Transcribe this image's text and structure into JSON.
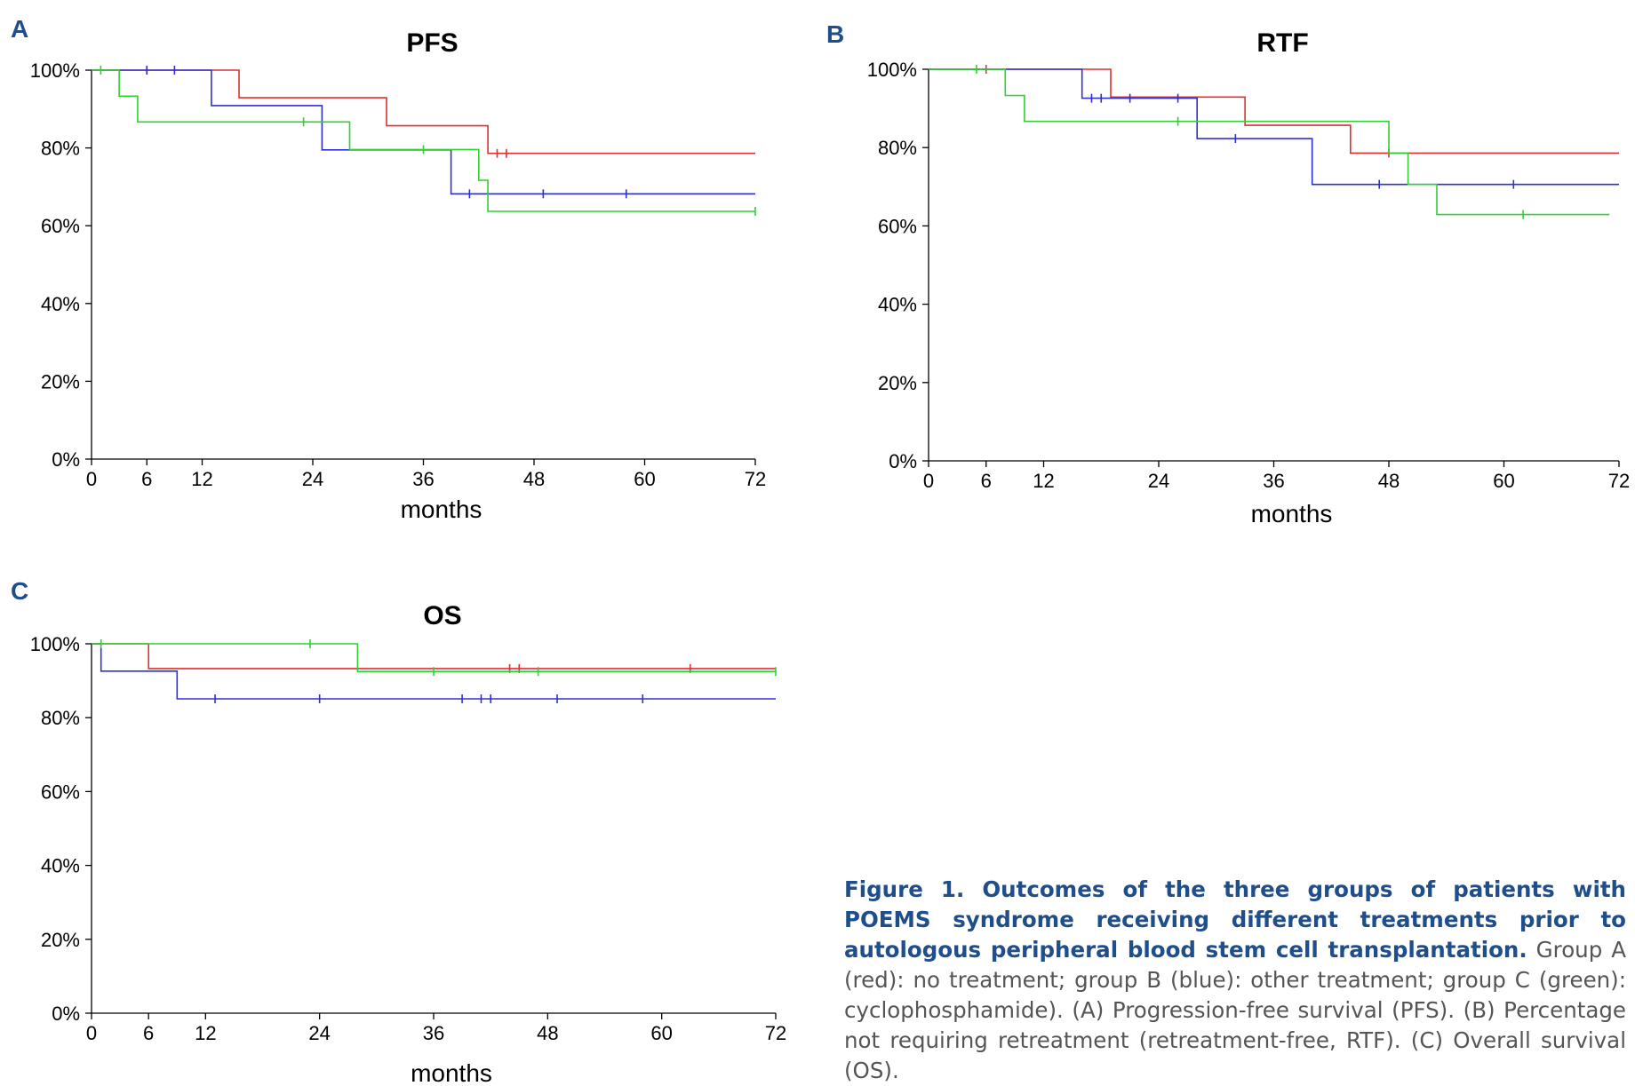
{
  "colors": {
    "group_a": "#e03030",
    "group_b": "#3030d0",
    "group_c": "#30d030",
    "panel_letter": "#1f4e8c",
    "caption_title": "#1f4e8c"
  },
  "caption": {
    "title": "Figure 1. Outcomes of the three groups of patients with POEMS syndrome receiving different treatments prior to autologous peripheral blood stem cell transplantation.",
    "body": "Group A (red): no treatment; group B (blue): other treatment; group C (green): cyclophosphamide). (A) Progression-free survival (PFS). (B) Percentage not requiring retreatment (retreatment-free, RTF). (C) Overall survival (OS)."
  },
  "chart_data": [
    {
      "panel": "A",
      "type": "line",
      "step": true,
      "title": "PFS",
      "xlabel": "months",
      "ylabel": "",
      "xlim": [
        0,
        72
      ],
      "ylim": [
        0,
        100
      ],
      "xticks": [
        0,
        6,
        12,
        24,
        36,
        48,
        60,
        72
      ],
      "yticks": [
        0,
        20,
        40,
        60,
        80,
        100
      ],
      "ytick_labels": [
        "0%",
        "20%",
        "40%",
        "60%",
        "80%",
        "100%"
      ],
      "series": [
        {
          "color": "#e03030",
          "points": [
            [
              0,
              100
            ],
            [
              16,
              100
            ],
            [
              16,
              92.9
            ],
            [
              32,
              92.9
            ],
            [
              32,
              85.7
            ],
            [
              43,
              85.7
            ],
            [
              43,
              78.6
            ],
            [
              72,
              78.6
            ]
          ],
          "censored": [
            [
              6,
              100
            ],
            [
              44,
              78.6
            ],
            [
              45,
              78.6
            ]
          ]
        },
        {
          "color": "#3030d0",
          "points": [
            [
              0,
              100
            ],
            [
              13,
              100
            ],
            [
              13,
              90.9
            ],
            [
              25,
              90.9
            ],
            [
              25,
              79.5
            ],
            [
              39,
              79.5
            ],
            [
              39,
              68.2
            ],
            [
              72,
              68.2
            ]
          ],
          "censored": [
            [
              6,
              100
            ],
            [
              9,
              100
            ],
            [
              41,
              68.2
            ],
            [
              49,
              68.2
            ],
            [
              58,
              68.2
            ]
          ]
        },
        {
          "color": "#30d030",
          "points": [
            [
              0,
              100
            ],
            [
              3,
              100
            ],
            [
              3,
              93.3
            ],
            [
              5,
              93.3
            ],
            [
              5,
              86.7
            ],
            [
              28,
              86.7
            ],
            [
              28,
              79.6
            ],
            [
              42,
              79.6
            ],
            [
              42,
              71.7
            ],
            [
              43,
              71.7
            ],
            [
              43,
              63.7
            ],
            [
              72,
              63.7
            ]
          ],
          "censored": [
            [
              1,
              100
            ],
            [
              23,
              86.7
            ],
            [
              36,
              79.6
            ],
            [
              72,
              63.7
            ]
          ]
        }
      ]
    },
    {
      "panel": "B",
      "type": "line",
      "step": true,
      "title": "RTF",
      "xlabel": "months",
      "ylabel": "",
      "xlim": [
        0,
        72
      ],
      "ylim": [
        0,
        100
      ],
      "xticks": [
        0,
        6,
        12,
        24,
        36,
        48,
        60,
        72
      ],
      "yticks": [
        0,
        20,
        40,
        60,
        80,
        100
      ],
      "ytick_labels": [
        "0%",
        "20%",
        "40%",
        "60%",
        "80%",
        "100%"
      ],
      "series": [
        {
          "color": "#e03030",
          "points": [
            [
              0,
              100
            ],
            [
              19,
              100
            ],
            [
              19,
              92.9
            ],
            [
              33,
              92.9
            ],
            [
              33,
              85.7
            ],
            [
              44,
              85.7
            ],
            [
              44,
              78.6
            ],
            [
              72,
              78.6
            ]
          ],
          "censored": [
            [
              6,
              100
            ],
            [
              48,
              78.6
            ]
          ]
        },
        {
          "color": "#3030d0",
          "points": [
            [
              0,
              100
            ],
            [
              16,
              100
            ],
            [
              16,
              92.6
            ],
            [
              28,
              92.6
            ],
            [
              28,
              82.3
            ],
            [
              40,
              82.3
            ],
            [
              40,
              70.6
            ],
            [
              72,
              70.6
            ]
          ],
          "censored": [
            [
              17,
              92.6
            ],
            [
              18,
              92.6
            ],
            [
              21,
              92.6
            ],
            [
              26,
              92.6
            ],
            [
              32,
              82.3
            ],
            [
              47,
              70.6
            ],
            [
              61,
              70.6
            ]
          ]
        },
        {
          "color": "#30d030",
          "points": [
            [
              0,
              100
            ],
            [
              8,
              100
            ],
            [
              8,
              93.3
            ],
            [
              10,
              93.3
            ],
            [
              10,
              86.7
            ],
            [
              48,
              86.7
            ],
            [
              48,
              78.6
            ],
            [
              50,
              78.6
            ],
            [
              50,
              70.6
            ],
            [
              53,
              70.6
            ],
            [
              53,
              62.9
            ],
            [
              71,
              62.9
            ]
          ],
          "censored": [
            [
              5,
              100
            ],
            [
              26,
              86.7
            ],
            [
              62,
              62.9
            ]
          ]
        }
      ]
    },
    {
      "panel": "C",
      "type": "line",
      "step": true,
      "title": "OS",
      "xlabel": "months",
      "ylabel": "",
      "xlim": [
        0,
        72
      ],
      "ylim": [
        0,
        100
      ],
      "xticks": [
        0,
        6,
        12,
        24,
        36,
        48,
        60,
        72
      ],
      "yticks": [
        0,
        20,
        40,
        60,
        80,
        100
      ],
      "ytick_labels": [
        "0%",
        "20%",
        "40%",
        "60%",
        "80%",
        "100%"
      ],
      "series": [
        {
          "color": "#e03030",
          "points": [
            [
              0,
              100
            ],
            [
              6,
              100
            ],
            [
              6,
              93.3
            ],
            [
              72,
              93.3
            ]
          ],
          "censored": [
            [
              44,
              93.3
            ],
            [
              45,
              93.3
            ],
            [
              63,
              93.3
            ]
          ]
        },
        {
          "color": "#3030d0",
          "points": [
            [
              0,
              100
            ],
            [
              1,
              100
            ],
            [
              1,
              92.6
            ],
            [
              9,
              92.6
            ],
            [
              9,
              85.1
            ],
            [
              72,
              85.1
            ]
          ],
          "censored": [
            [
              13,
              85.1
            ],
            [
              24,
              85.1
            ],
            [
              39,
              85.1
            ],
            [
              41,
              85.1
            ],
            [
              42,
              85.1
            ],
            [
              49,
              85.1
            ],
            [
              58,
              85.1
            ]
          ]
        },
        {
          "color": "#30d030",
          "points": [
            [
              0,
              100
            ],
            [
              28,
              100
            ],
            [
              28,
              92.5
            ],
            [
              72,
              92.5
            ]
          ],
          "censored": [
            [
              1,
              100
            ],
            [
              23,
              100
            ],
            [
              36,
              92.5
            ],
            [
              47,
              92.5
            ],
            [
              72,
              92.5
            ]
          ]
        }
      ]
    }
  ]
}
